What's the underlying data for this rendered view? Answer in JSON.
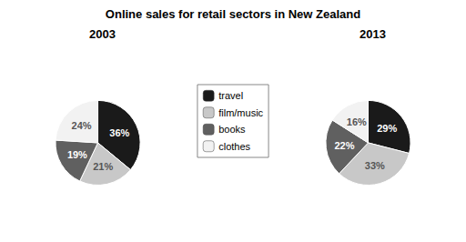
{
  "chart_data": {
    "type": "pie",
    "title": "Online sales for retail sectors in New Zealand",
    "categories": [
      "travel",
      "film/music",
      "books",
      "clothes"
    ],
    "colors": [
      "#1a1a1a",
      "#c8c8c8",
      "#606060",
      "#f2f2f2"
    ],
    "series": [
      {
        "name": "2003",
        "values": [
          36,
          21,
          19,
          24
        ],
        "value_labels": [
          "36%",
          "21%",
          "19%",
          "24%"
        ]
      },
      {
        "name": "2013",
        "values": [
          29,
          33,
          22,
          16
        ],
        "value_labels": [
          "29%",
          "33%",
          "22%",
          "16%"
        ]
      }
    ],
    "data_labels": true,
    "legend": "center"
  }
}
